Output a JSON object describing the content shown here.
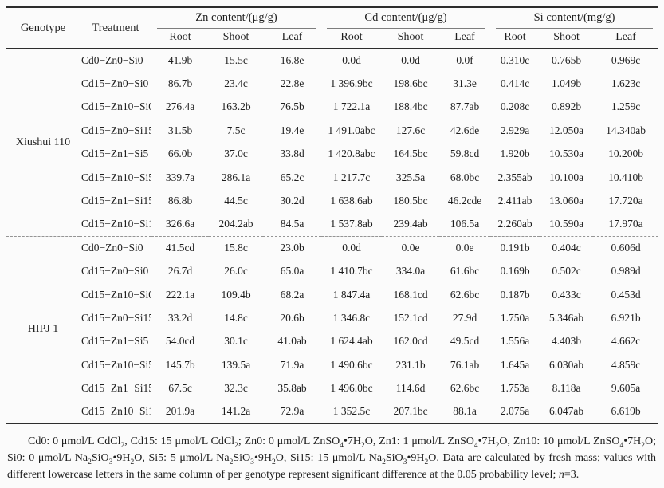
{
  "table": {
    "corner_headers": {
      "genotype": "Genotype",
      "treatment": "Treatment"
    },
    "column_groups": [
      {
        "label": "Zn content/(μg/g)",
        "unit_columns": [
          "Root",
          "Shoot",
          "Leaf"
        ]
      },
      {
        "label": "Cd content/(μg/g)",
        "unit_columns": [
          "Root",
          "Shoot",
          "Leaf"
        ]
      },
      {
        "label": "Si content/(mg/g)",
        "unit_columns": [
          "Root",
          "Shoot",
          "Leaf"
        ]
      }
    ],
    "genotype_groups": [
      {
        "genotype": "Xiushui 110",
        "rows": [
          {
            "treatment": "Cd0−Zn0−Si0",
            "values": [
              "41.9b",
              "15.5c",
              "16.8e",
              "0.0d",
              "0.0d",
              "0.0f",
              "0.310c",
              "0.765b",
              "0.969c"
            ]
          },
          {
            "treatment": "Cd15−Zn0−Si0",
            "values": [
              "86.7b",
              "23.4c",
              "22.8e",
              "1 396.9bc",
              "198.6bc",
              "31.3e",
              "0.414c",
              "1.049b",
              "1.623c"
            ]
          },
          {
            "treatment": "Cd15−Zn10−Si0",
            "values": [
              "276.4a",
              "163.2b",
              "76.5b",
              "1 722.1a",
              "188.4bc",
              "87.7ab",
              "0.208c",
              "0.892b",
              "1.259c"
            ]
          },
          {
            "treatment": "Cd15−Zn0−Si15",
            "values": [
              "31.5b",
              "7.5c",
              "19.4e",
              "1 491.0abc",
              "127.6c",
              "42.6de",
              "2.929a",
              "12.050a",
              "14.340ab"
            ]
          },
          {
            "treatment": "Cd15−Zn1−Si5",
            "values": [
              "66.0b",
              "37.0c",
              "33.8d",
              "1 420.8abc",
              "164.5bc",
              "59.8cd",
              "1.920b",
              "10.530a",
              "10.200b"
            ]
          },
          {
            "treatment": "Cd15−Zn10−Si5",
            "values": [
              "339.7a",
              "286.1a",
              "65.2c",
              "1 217.7c",
              "325.5a",
              "68.0bc",
              "2.355ab",
              "10.100a",
              "10.410b"
            ]
          },
          {
            "treatment": "Cd15−Zn1−Si15",
            "values": [
              "86.8b",
              "44.5c",
              "30.2d",
              "1 638.6ab",
              "180.5bc",
              "46.2cde",
              "2.411ab",
              "13.060a",
              "17.720a"
            ]
          },
          {
            "treatment": "Cd15−Zn10−Si15",
            "values": [
              "326.6a",
              "204.2ab",
              "84.5a",
              "1 537.8ab",
              "239.4ab",
              "106.5a",
              "2.260ab",
              "10.590a",
              "17.970a"
            ]
          }
        ]
      },
      {
        "genotype": "HIPJ 1",
        "rows": [
          {
            "treatment": "Cd0−Zn0−Si0",
            "values": [
              "41.5cd",
              "15.8c",
              "23.0b",
              "0.0d",
              "0.0e",
              "0.0e",
              "0.191b",
              "0.404c",
              "0.606d"
            ]
          },
          {
            "treatment": "Cd15−Zn0−Si0",
            "values": [
              "26.7d",
              "26.0c",
              "65.0a",
              "1 410.7bc",
              "334.0a",
              "61.6bc",
              "0.169b",
              "0.502c",
              "0.989d"
            ]
          },
          {
            "treatment": "Cd15−Zn10−Si0",
            "values": [
              "222.1a",
              "109.4b",
              "68.2a",
              "1 847.4a",
              "168.1cd",
              "62.6bc",
              "0.187b",
              "0.433c",
              "0.453d"
            ]
          },
          {
            "treatment": "Cd15−Zn0−Si15",
            "values": [
              "33.2d",
              "14.8c",
              "20.6b",
              "1 346.8c",
              "152.1cd",
              "27.9d",
              "1.750a",
              "5.346ab",
              "6.921b"
            ]
          },
          {
            "treatment": "Cd15−Zn1−Si5",
            "values": [
              "54.0cd",
              "30.1c",
              "41.0ab",
              "1 624.4ab",
              "162.0cd",
              "49.5cd",
              "1.556a",
              "4.403b",
              "4.662c"
            ]
          },
          {
            "treatment": "Cd15−Zn10−Si5",
            "values": [
              "145.7b",
              "139.5a",
              "71.9a",
              "1 490.6bc",
              "231.1b",
              "76.1ab",
              "1.645a",
              "6.030ab",
              "4.859c"
            ]
          },
          {
            "treatment": "Cd15−Zn1−Si15",
            "values": [
              "67.5c",
              "32.3c",
              "35.8ab",
              "1 496.0bc",
              "114.6d",
              "62.6bc",
              "1.753a",
              "8.118a",
              "9.605a"
            ]
          },
          {
            "treatment": "Cd15−Zn10−Si15",
            "values": [
              "201.9a",
              "141.2a",
              "72.9a",
              "1 352.5c",
              "207.1bc",
              "88.1a",
              "2.075a",
              "6.047ab",
              "6.619b"
            ]
          }
        ]
      }
    ]
  },
  "footnote": {
    "segments": [
      {
        "t": "Cd0: 0 μmol/L CdCl"
      },
      {
        "t": "2",
        "s": "sub"
      },
      {
        "t": ", Cd15: 15 μmol/L CdCl"
      },
      {
        "t": "2",
        "s": "sub"
      },
      {
        "t": "; Zn0: 0 μmol/L ZnSO"
      },
      {
        "t": "4",
        "s": "sub"
      },
      {
        "t": "•7H"
      },
      {
        "t": "2",
        "s": "sub"
      },
      {
        "t": "O, Zn1: 1 μmol/L ZnSO"
      },
      {
        "t": "4",
        "s": "sub"
      },
      {
        "t": "•7H"
      },
      {
        "t": "2",
        "s": "sub"
      },
      {
        "t": "O, Zn10: 10 μmol/L ZnSO"
      },
      {
        "t": "4",
        "s": "sub"
      },
      {
        "t": "•7H"
      },
      {
        "t": "2",
        "s": "sub"
      },
      {
        "t": "O; Si0: 0 μmol/L Na"
      },
      {
        "t": "2",
        "s": "sub"
      },
      {
        "t": "SiO"
      },
      {
        "t": "3",
        "s": "sub"
      },
      {
        "t": "•9H"
      },
      {
        "t": "2",
        "s": "sub"
      },
      {
        "t": "O, Si5: 5 μmol/L Na"
      },
      {
        "t": "2",
        "s": "sub"
      },
      {
        "t": "SiO"
      },
      {
        "t": "3",
        "s": "sub"
      },
      {
        "t": "•9H"
      },
      {
        "t": "2",
        "s": "sub"
      },
      {
        "t": "O, Si15: 15 μmol/L Na"
      },
      {
        "t": "2",
        "s": "sub"
      },
      {
        "t": "SiO"
      },
      {
        "t": "3",
        "s": "sub"
      },
      {
        "t": "•9H"
      },
      {
        "t": "2",
        "s": "sub"
      },
      {
        "t": "O. Data are calculated by fresh mass; values with different lowercase letters in the same column of per genotype represent significant difference at the 0.05 probability level; "
      },
      {
        "t": "n",
        "s": "i"
      },
      {
        "t": "=3."
      }
    ]
  }
}
